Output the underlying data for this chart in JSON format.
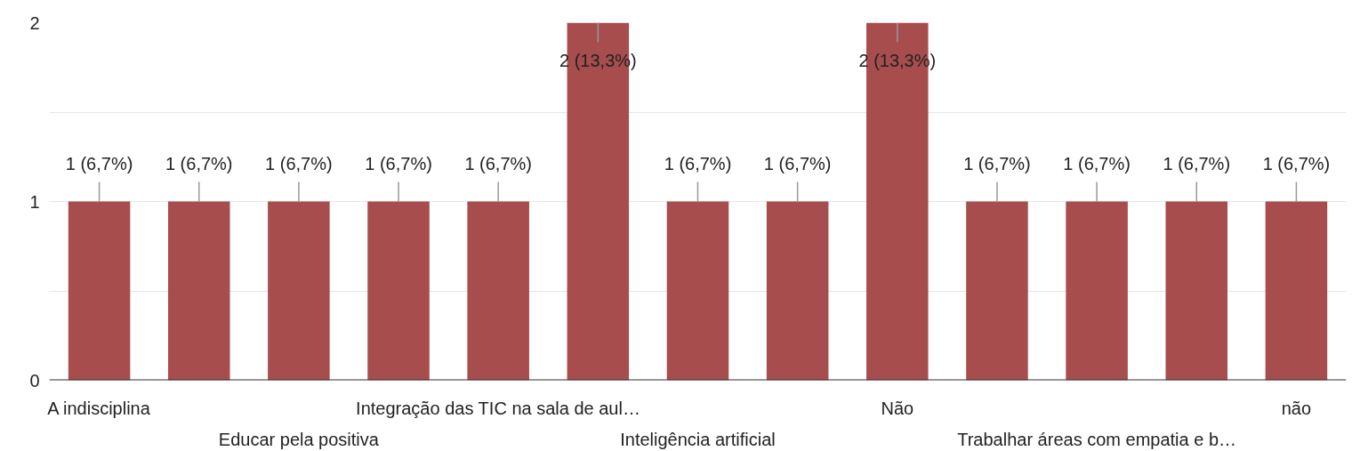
{
  "chart_data": {
    "type": "bar",
    "categories": [
      "A indisciplina",
      null,
      "Educar pela positiva",
      null,
      "Integração das TIC na sala de aul…",
      null,
      "Inteligência artificial",
      null,
      "Não",
      null,
      "Trabalhar áreas com empatia e b…",
      null,
      "não"
    ],
    "values": [
      1,
      1,
      1,
      1,
      1,
      2,
      1,
      1,
      2,
      1,
      1,
      1,
      1
    ],
    "color": "#a84d4d",
    "value_labels": [
      "1 (6,7%)",
      "1 (6,7%)",
      "1 (6,7%)",
      "1 (6,7%)",
      "1 (6,7%)",
      "2 (13,3%)",
      "1 (6,7%)",
      "1 (6,7%)",
      "2 (13,3%)",
      "1 (6,7%)",
      "1 (6,7%)",
      "1 (6,7%)",
      "1 (6,7%)"
    ],
    "ylim": [
      0,
      2
    ],
    "yticks": [
      0,
      {
        "value": 0.5,
        "label": null
      },
      1,
      {
        "value": 1.5,
        "label": null
      },
      2
    ],
    "grid": "y"
  }
}
